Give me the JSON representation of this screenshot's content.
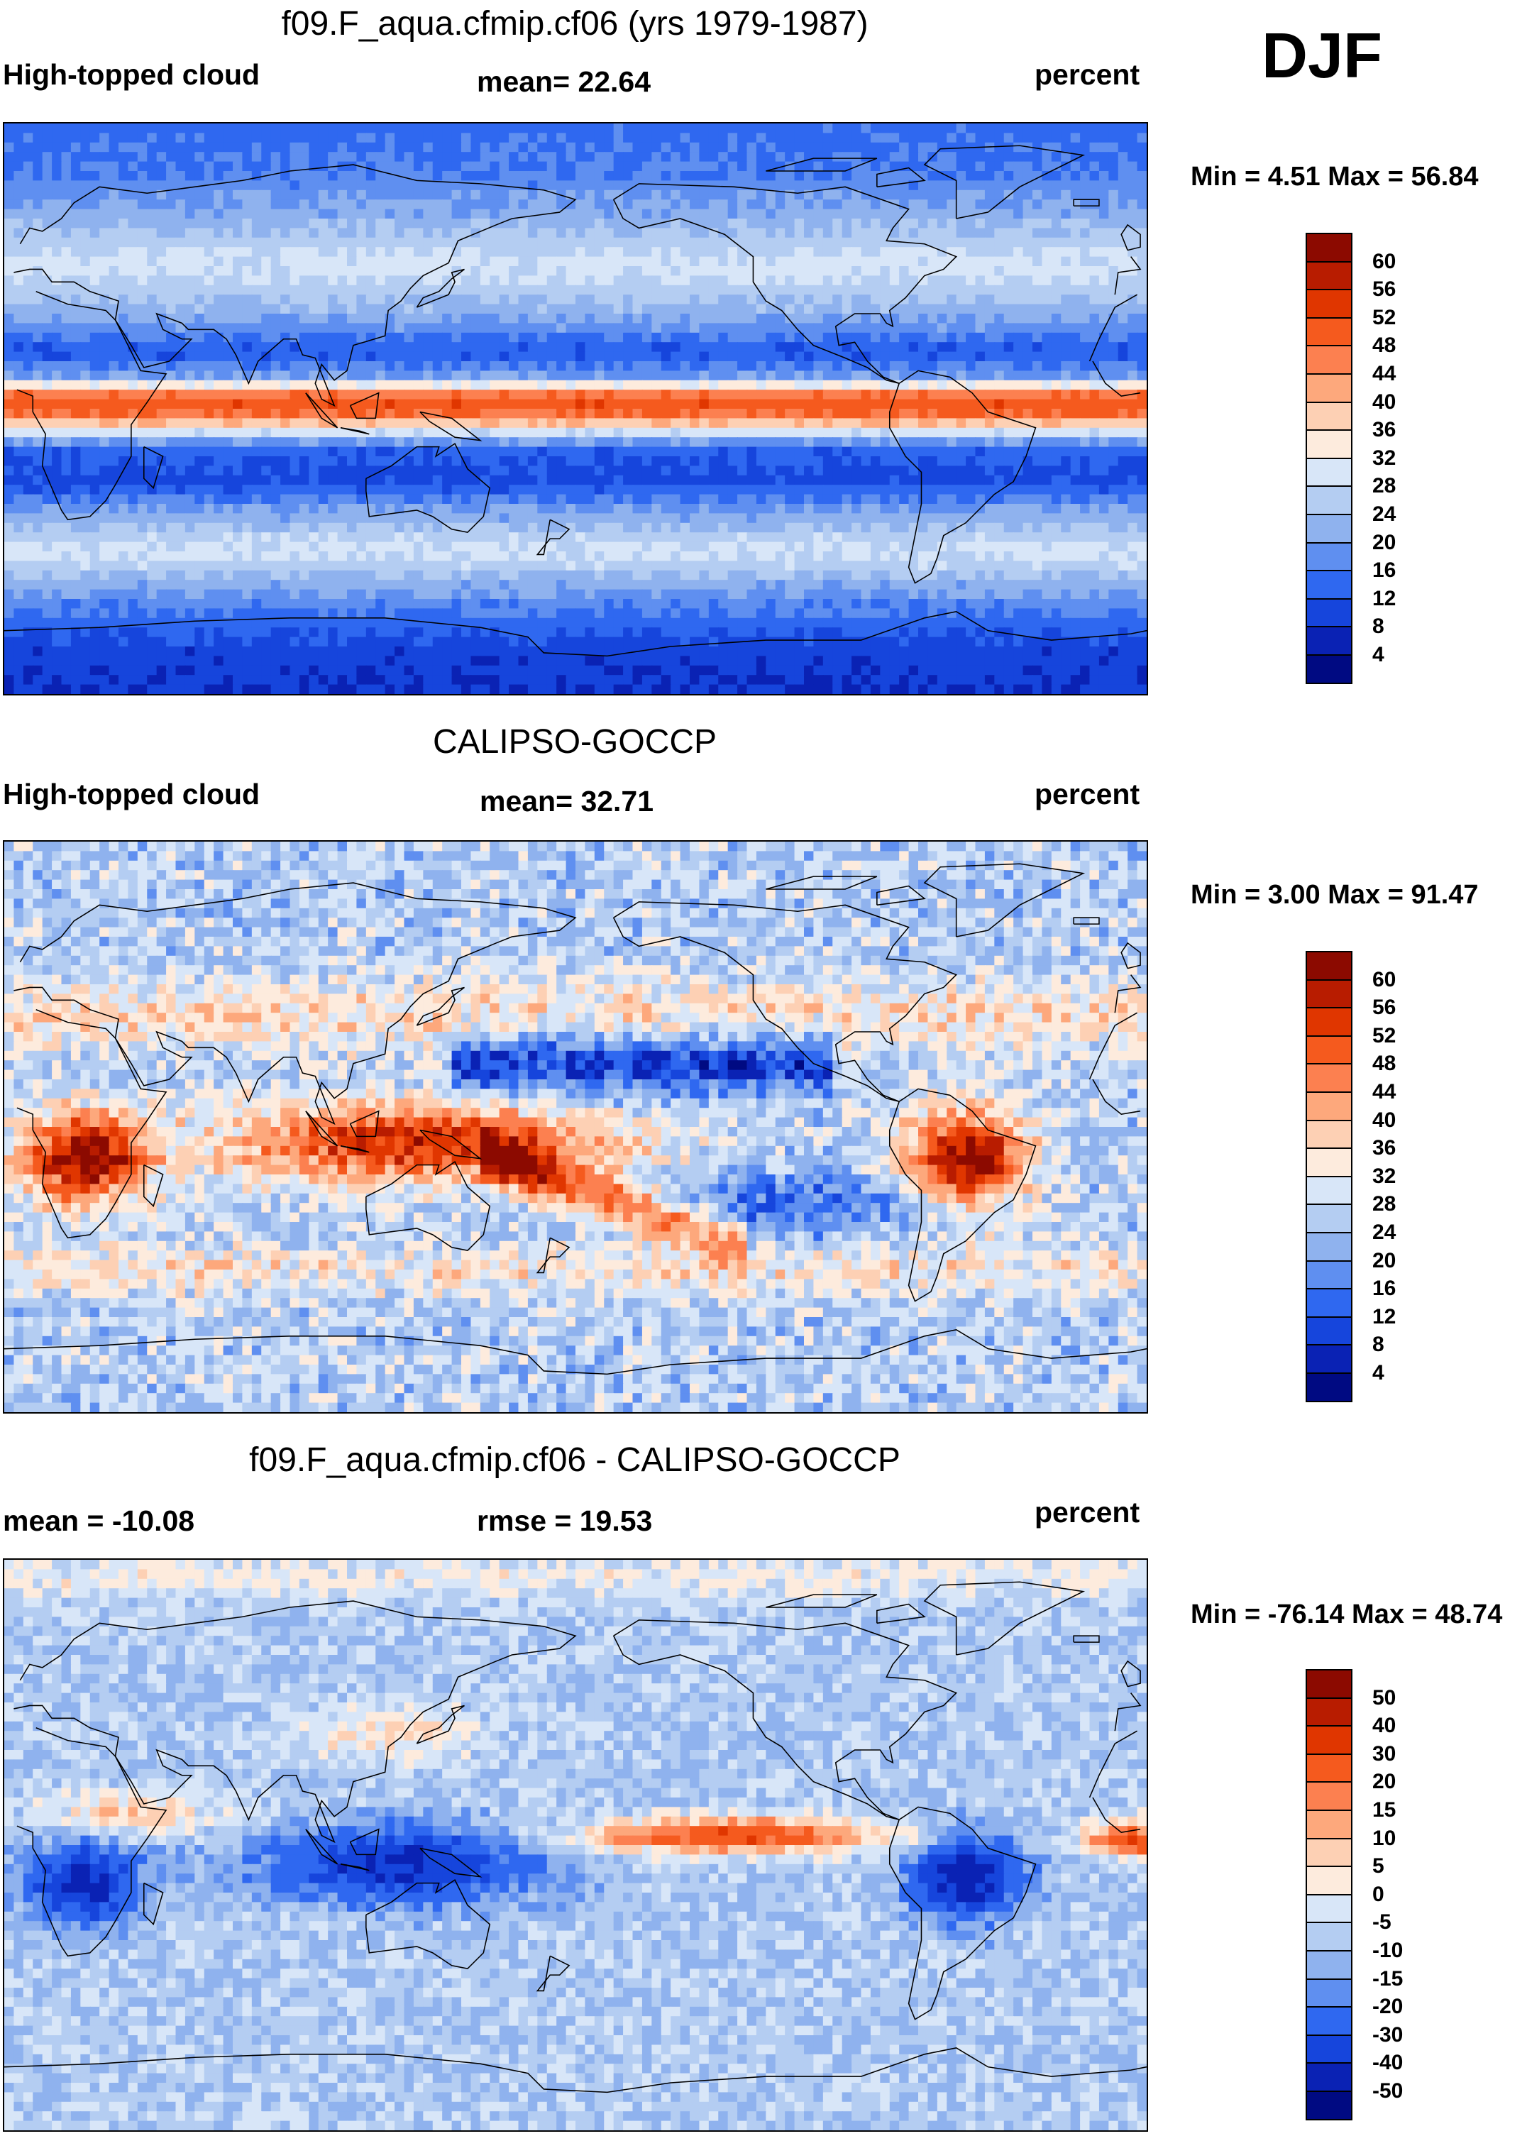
{
  "season": "DJF",
  "panels": [
    {
      "id": "model",
      "title": "f09.F_aqua.cfmip.cf06 (yrs 1979-1987)",
      "left_label": "High-topped cloud",
      "center_label": "mean=  22.64",
      "units": "percent",
      "minmax": "Min =   4.51 Max =  56.84"
    },
    {
      "id": "obs",
      "title": "CALIPSO-GOCCP",
      "left_label": "High-topped cloud",
      "center_label": "mean=  32.71",
      "units": "percent",
      "minmax": "Min =   3.00 Max =  91.47"
    },
    {
      "id": "diff",
      "title": "f09.F_aqua.cfmip.cf06 - CALIPSO-GOCCP",
      "left_label": "mean = -10.08",
      "center_label": "rmse =  19.53",
      "units": "percent",
      "minmax": "Min = -76.14 Max =  48.74"
    }
  ],
  "chart_data": [
    {
      "type": "heatmap",
      "title": "f09.F_aqua.cfmip.cf06 (yrs 1979-1987)",
      "variable": "High-topped cloud",
      "units": "percent",
      "mean": 22.64,
      "min": 4.51,
      "max": 56.84,
      "colorbar_levels": [
        "60",
        "56",
        "52",
        "48",
        "44",
        "40",
        "36",
        "32",
        "28",
        "24",
        "20",
        "16",
        "12",
        "8",
        "4"
      ],
      "colorbar_colors": [
        "#8c0a00",
        "#b81c00",
        "#e03600",
        "#f55a1e",
        "#fc8050",
        "#fda87c",
        "#fdd0b4",
        "#fdebdd",
        "#d8e6f8",
        "#b4cdf2",
        "#8fb2ee",
        "#5f8ff0",
        "#2f68f0",
        "#1645dc",
        "#0a22b4",
        "#000a82"
      ],
      "zonal_profile": [
        {
          "lat": 90,
          "value": 14
        },
        {
          "lat": 75,
          "value": 16
        },
        {
          "lat": 60,
          "value": 22
        },
        {
          "lat": 45,
          "value": 30
        },
        {
          "lat": 30,
          "value": 22
        },
        {
          "lat": 18,
          "value": 12
        },
        {
          "lat": 10,
          "value": 20
        },
        {
          "lat": 5,
          "value": 46
        },
        {
          "lat": 0,
          "value": 52
        },
        {
          "lat": -5,
          "value": 38
        },
        {
          "lat": -12,
          "value": 14
        },
        {
          "lat": -22,
          "value": 10
        },
        {
          "lat": -32,
          "value": 20
        },
        {
          "lat": -45,
          "value": 30
        },
        {
          "lat": -60,
          "value": 18
        },
        {
          "lat": -75,
          "value": 10
        },
        {
          "lat": -90,
          "value": 8
        }
      ]
    },
    {
      "type": "heatmap",
      "title": "CALIPSO-GOCCP",
      "variable": "High-topped cloud",
      "units": "percent",
      "mean": 32.71,
      "min": 3.0,
      "max": 91.47,
      "colorbar_levels": [
        "60",
        "56",
        "52",
        "48",
        "44",
        "40",
        "36",
        "32",
        "28",
        "24",
        "20",
        "16",
        "12",
        "8",
        "4"
      ],
      "colorbar_colors": [
        "#8c0a00",
        "#b81c00",
        "#e03600",
        "#f55a1e",
        "#fc8050",
        "#fda87c",
        "#fdd0b4",
        "#fdebdd",
        "#d8e6f8",
        "#b4cdf2",
        "#8fb2ee",
        "#5f8ff0",
        "#2f68f0",
        "#1645dc",
        "#0a22b4",
        "#000a82"
      ],
      "features": [
        {
          "name": "Maritime continent / SPCZ band",
          "value": 58
        },
        {
          "name": "Southern Africa",
          "value": 62
        },
        {
          "name": "Amazon",
          "value": 62
        },
        {
          "name": "Subtropical Pacific minimum",
          "value": 10
        }
      ]
    },
    {
      "type": "heatmap",
      "title": "f09.F_aqua.cfmip.cf06 - CALIPSO-GOCCP",
      "variable": "difference",
      "units": "percent",
      "mean": -10.08,
      "rmse": 19.53,
      "min": -76.14,
      "max": 48.74,
      "colorbar_levels": [
        "50",
        "40",
        "30",
        "20",
        "15",
        "10",
        "5",
        "0",
        "-5",
        "-10",
        "-15",
        "-20",
        "-30",
        "-40",
        "-50"
      ],
      "colorbar_colors": [
        "#8c0a00",
        "#b81c00",
        "#e03600",
        "#f55a1e",
        "#fc8050",
        "#fda87c",
        "#fdd0b4",
        "#fdebdd",
        "#d8e6f8",
        "#b4cdf2",
        "#8fb2ee",
        "#5f8ff0",
        "#2f68f0",
        "#1645dc",
        "#0a22b4",
        "#000a82"
      ],
      "features": [
        {
          "name": "Central/east Pacific ITCZ excess",
          "value": 30
        },
        {
          "name": "Maritime continent deficit",
          "value": -40
        },
        {
          "name": "Amazon deficit",
          "value": -50
        },
        {
          "name": "Southern Africa deficit",
          "value": -45
        }
      ]
    }
  ]
}
